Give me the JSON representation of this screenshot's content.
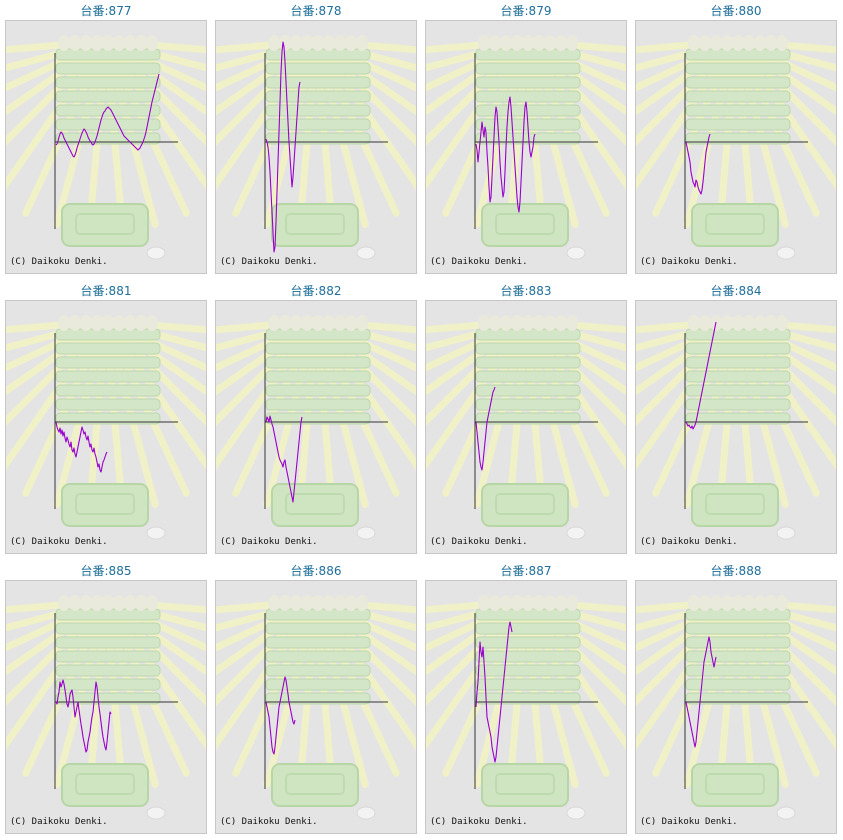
{
  "copyright": "(C) Daikoku Denki.",
  "line_color": "#9900cc",
  "title_color": "#1f6f9a",
  "chart_data": [
    {
      "type": "line",
      "title": "台番:877",
      "series": [
        {
          "values": [
            -3,
            -2,
            1,
            5,
            8,
            10,
            9,
            7,
            4,
            2,
            0,
            -2,
            -4,
            -6,
            -8,
            -10,
            -12,
            -14,
            -15,
            -13,
            -10,
            -6,
            -3,
            0,
            3,
            6,
            9,
            11,
            13,
            12,
            10,
            8,
            5,
            3,
            1,
            0,
            -2,
            -3,
            -2,
            0,
            3,
            6,
            10,
            14,
            18,
            22,
            25,
            28,
            30,
            31,
            33,
            34,
            35,
            34,
            33,
            32,
            30,
            28,
            26,
            24,
            22,
            20,
            18,
            16,
            14,
            12,
            10,
            8,
            6,
            5,
            4,
            3,
            2,
            1,
            0,
            -1,
            -2,
            -3,
            -4,
            -5,
            -6,
            -7,
            -8,
            -7,
            -6,
            -4,
            -2,
            0,
            3,
            6,
            10,
            15,
            20,
            25,
            30,
            35,
            40,
            44,
            48,
            52,
            56,
            60,
            64,
            68
          ]
        }
      ]
    },
    {
      "type": "line",
      "title": "台番:878",
      "series": [
        {
          "values": [
            3,
            0,
            -5,
            -15,
            -30,
            -50,
            -70,
            -90,
            -110,
            -105,
            -80,
            -50,
            -20,
            10,
            40,
            70,
            90,
            100,
            95,
            80,
            60,
            40,
            20,
            0,
            -15,
            -30,
            -45,
            -35,
            -20,
            -5,
            10,
            25,
            40,
            55,
            60
          ]
        }
      ]
    },
    {
      "type": "line",
      "title": "台番:879",
      "series": [
        {
          "values": [
            -2,
            -8,
            -20,
            -10,
            0,
            10,
            20,
            12,
            5,
            15,
            10,
            -10,
            -25,
            -45,
            -60,
            -55,
            -35,
            -15,
            5,
            25,
            35,
            30,
            15,
            0,
            -20,
            -35,
            -45,
            -55,
            -50,
            -30,
            -5,
            15,
            30,
            40,
            45,
            35,
            20,
            5,
            -10,
            -25,
            -40,
            -55,
            -65,
            -70,
            -60,
            -40,
            -20,
            0,
            20,
            35,
            40,
            30,
            15,
            0,
            -10,
            -15,
            -10,
            -5,
            5,
            8
          ]
        }
      ]
    },
    {
      "type": "line",
      "title": "台番:880",
      "series": [
        {
          "values": [
            0,
            -5,
            -10,
            -15,
            -20,
            -30,
            -35,
            -40,
            -42,
            -45,
            -38,
            -40,
            -45,
            -48,
            -50,
            -52,
            -48,
            -40,
            -30,
            -20,
            -10,
            -5,
            0,
            5,
            8
          ]
        }
      ]
    },
    {
      "type": "line",
      "title": "台番:881",
      "series": [
        {
          "values": [
            0,
            -5,
            -8,
            -10,
            -6,
            -12,
            -8,
            -14,
            -10,
            -16,
            -20,
            -15,
            -18,
            -22,
            -25,
            -20,
            -28,
            -30,
            -26,
            -32,
            -35,
            -30,
            -25,
            -20,
            -15,
            -10,
            -5,
            -8,
            -12,
            -10,
            -15,
            -18,
            -14,
            -20,
            -25,
            -22,
            -28,
            -30,
            -26,
            -32,
            -35,
            -40,
            -45,
            -42,
            -48,
            -50,
            -45,
            -40,
            -38,
            -35,
            -32,
            -30
          ]
        }
      ]
    },
    {
      "type": "line",
      "title": "台番:882",
      "series": [
        {
          "values": [
            0,
            5,
            3,
            0,
            6,
            2,
            -2,
            -5,
            -10,
            -15,
            -20,
            -25,
            -30,
            -35,
            -38,
            -40,
            -42,
            -45,
            -40,
            -38,
            -45,
            -50,
            -55,
            -60,
            -65,
            -70,
            -75,
            -80,
            -70,
            -60,
            -50,
            -40,
            -30,
            -20,
            -10,
            0,
            5
          ]
        }
      ]
    },
    {
      "type": "line",
      "title": "台番:883",
      "series": [
        {
          "values": [
            0,
            -10,
            -20,
            -30,
            -40,
            -45,
            -48,
            -40,
            -30,
            -20,
            -10,
            0,
            5,
            10,
            15,
            20,
            25,
            30,
            32,
            35
          ]
        }
      ]
    },
    {
      "type": "line",
      "title": "台番:884",
      "series": [
        {
          "values": [
            0,
            -2,
            -4,
            -3,
            -5,
            -6,
            -4,
            -7,
            -5,
            -3,
            0,
            5,
            10,
            15,
            20,
            25,
            30,
            35,
            40,
            45,
            50,
            55,
            60,
            65,
            70,
            75,
            80,
            85,
            90,
            95,
            100
          ]
        }
      ]
    },
    {
      "type": "line",
      "title": "台番:885",
      "series": [
        {
          "values": [
            0,
            -2,
            5,
            10,
            20,
            15,
            18,
            22,
            18,
            12,
            5,
            -2,
            -5,
            0,
            8,
            10,
            12,
            5,
            -5,
            -15,
            -10,
            -5,
            0,
            -8,
            -15,
            -22,
            -28,
            -35,
            -40,
            -45,
            -50,
            -48,
            -40,
            -35,
            -30,
            -22,
            -15,
            -10,
            0,
            10,
            20,
            15,
            5,
            -5,
            -12,
            -20,
            -28,
            -35,
            -40,
            -45,
            -48,
            -40,
            -30,
            -20,
            -10,
            -12
          ]
        }
      ]
    },
    {
      "type": "line",
      "title": "台番:886",
      "series": [
        {
          "values": [
            0,
            -5,
            -10,
            -15,
            -25,
            -35,
            -45,
            -50,
            -52,
            -45,
            -35,
            -25,
            -15,
            -5,
            0,
            5,
            10,
            15,
            20,
            25,
            22,
            15,
            8,
            0,
            -5,
            -10,
            -15,
            -20,
            -22,
            -18
          ]
        }
      ]
    },
    {
      "type": "line",
      "title": "台番:887",
      "series": [
        {
          "values": [
            -5,
            10,
            20,
            40,
            60,
            50,
            45,
            55,
            40,
            25,
            5,
            -15,
            -20,
            -25,
            -30,
            -35,
            -45,
            -50,
            -55,
            -60,
            -55,
            -45,
            -35,
            -25,
            -15,
            -5,
            5,
            15,
            25,
            35,
            45,
            55,
            65,
            75,
            80,
            75,
            70
          ]
        }
      ]
    },
    {
      "type": "line",
      "title": "台番:888",
      "series": [
        {
          "values": [
            0,
            -5,
            -10,
            -15,
            -20,
            -25,
            -30,
            -35,
            -40,
            -45,
            -40,
            -30,
            -20,
            -10,
            0,
            10,
            20,
            30,
            40,
            45,
            50,
            55,
            60,
            65,
            60,
            50,
            45,
            40,
            35,
            40,
            45
          ]
        }
      ]
    }
  ]
}
